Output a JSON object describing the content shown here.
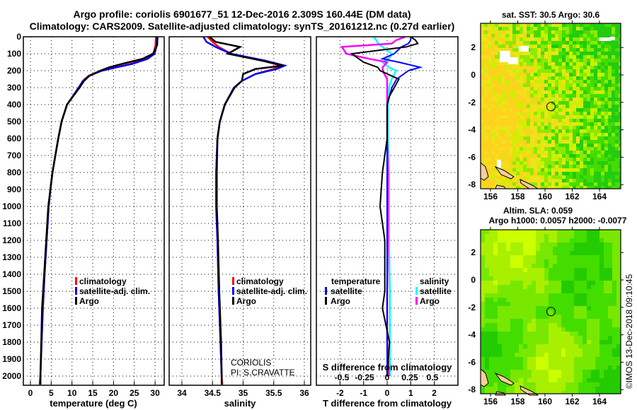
{
  "title_line1": "Argo profile: coriolis 6901677_51 12-Dec-2016 2.309S 160.44E (DM data)",
  "title_line2": "Climatology: CARS2009. Satellite-adjusted climatology: synTS_20161212.nc (0.27d earlier)",
  "credit": "©IMOS 13-Dec-2018 09:10:45",
  "annotation": {
    "line1": "CORIOLIS",
    "line2": "PI: S.CRAVATTE"
  },
  "colors": {
    "climatology": "#ff0000",
    "satellite": "#0000ff",
    "argo": "#000000",
    "sal_satellite": "#00ffff",
    "sal_argo": "#ff00ff"
  },
  "chart_data": [
    {
      "type": "line",
      "title": "",
      "xlabel": "temperature (deg C)",
      "ylabel": "",
      "xlim": [
        -2,
        32
      ],
      "ylim": [
        2054,
        0
      ],
      "xticks": [
        "0",
        "5",
        "10",
        "15",
        "20",
        "25",
        "30"
      ],
      "yticks": [
        "0",
        "100",
        "200",
        "300",
        "400",
        "500",
        "600",
        "700",
        "800",
        "900",
        "1000",
        "1100",
        "1200",
        "1300",
        "1400",
        "1500",
        "1600",
        "1700",
        "1800",
        "1900",
        "2000"
      ],
      "legend": [
        "climatology",
        "satellite-adj. clim.",
        "Argo"
      ],
      "legend_placement": "center-right",
      "depth": [
        0,
        50,
        100,
        130,
        160,
        180,
        200,
        230,
        260,
        300,
        400,
        500,
        600,
        700,
        800,
        900,
        1000,
        1200,
        1400,
        1600,
        1800,
        2000,
        2050
      ],
      "series": [
        {
          "name": "climatology",
          "values": [
            30.2,
            30.1,
            29.6,
            28,
            24,
            20.5,
            17,
            14,
            12.6,
            11.6,
            8.8,
            7.5,
            6.7,
            6,
            5.3,
            4.8,
            4.4,
            3.9,
            3.4,
            3,
            2.7,
            2.4,
            2.2
          ]
        },
        {
          "name": "satellite-adj. clim.",
          "values": [
            30.5,
            30.4,
            29.9,
            28.2,
            24.5,
            20.8,
            17.2,
            14.1,
            12.7,
            11.6,
            8.8,
            7.5,
            6.7,
            6,
            5.3,
            4.8,
            4.4,
            3.9,
            3.4,
            3,
            2.7,
            2.4,
            2.4
          ]
        },
        {
          "name": "Argo",
          "values": [
            30.6,
            30.5,
            29.5,
            27,
            22,
            19,
            16.8,
            14.2,
            12.9,
            11.8,
            8.8,
            7.5,
            6.7,
            6,
            5.3,
            4.8,
            4.3,
            3.8,
            3.3,
            2.8,
            2.6,
            2.4,
            2.4
          ]
        }
      ]
    },
    {
      "type": "line",
      "xlabel": "salinity",
      "xlim": [
        33.8,
        36.1
      ],
      "ylim": [
        2054,
        0
      ],
      "xticks": [
        "34",
        "34.5",
        "35",
        "35.5",
        "36"
      ],
      "legend": [
        "climatology",
        "satellite-adj. clim.",
        "Argo"
      ],
      "legend_placement": "center-right",
      "depth": [
        0,
        30,
        60,
        100,
        140,
        170,
        190,
        220,
        260,
        300,
        400,
        500,
        600,
        800,
        1000,
        1200,
        1500,
        1800,
        2000,
        2050
      ],
      "series": [
        {
          "name": "climatology",
          "values": [
            34.42,
            34.5,
            34.6,
            34.8,
            35.3,
            35.62,
            35.5,
            35.2,
            34.98,
            34.85,
            34.7,
            34.62,
            34.58,
            34.56,
            34.56,
            34.58,
            34.6,
            34.63,
            34.65,
            34.66
          ]
        },
        {
          "name": "satellite-adj. clim.",
          "values": [
            34.35,
            34.4,
            34.55,
            34.8,
            35.35,
            35.68,
            35.55,
            35.2,
            34.98,
            34.85,
            34.7,
            34.62,
            34.58,
            34.56,
            34.56,
            34.58,
            34.6,
            34.63,
            34.65,
            34.65
          ]
        },
        {
          "name": "Argo",
          "values": [
            34.45,
            34.55,
            34.95,
            34.75,
            35.3,
            35.66,
            35.2,
            35.0,
            34.98,
            34.86,
            34.7,
            34.62,
            34.58,
            34.57,
            34.57,
            34.59,
            34.61,
            34.64,
            34.65,
            34.65
          ]
        }
      ]
    },
    {
      "type": "line",
      "xlabel": "T difference from climatology",
      "xlabel_secondary": "S difference from climatology",
      "xlim": [
        -3,
        3
      ],
      "xlim_secondary": [
        -0.75,
        0.75
      ],
      "ylim": [
        2054,
        0
      ],
      "xticks": [
        "-2",
        "-1",
        "0",
        "1",
        "2"
      ],
      "xticks_secondary": [
        "-0.5",
        "-0.25",
        "0",
        "0.25",
        "0.5"
      ],
      "legend_temperature": {
        "heading": "temperature",
        "items": [
          "satellite",
          "Argo"
        ]
      },
      "legend_salinity": {
        "heading": "salinity",
        "items": [
          "satellite",
          "Argo"
        ]
      },
      "depth": [
        0,
        20,
        40,
        60,
        100,
        130,
        150,
        180,
        200,
        250,
        300,
        350,
        400,
        600,
        800,
        1000,
        1100,
        1200,
        1500,
        1600,
        1800,
        2000
      ],
      "series": [
        {
          "name": "temperature satellite",
          "values": [
            1.0,
            1.0,
            0.9,
            0.6,
            0.3,
            -0.2,
            0.5,
            1.4,
            0.9,
            0.4,
            0.2,
            0.1,
            0,
            0,
            0,
            0,
            0,
            0,
            0,
            0,
            0,
            0
          ]
        },
        {
          "name": "temperature Argo",
          "values": [
            1.0,
            1.2,
            1.3,
            0.8,
            -1.5,
            -1.2,
            -1.0,
            -0.4,
            -0.3,
            0.5,
            0.3,
            0.1,
            0,
            0,
            -0.2,
            -0.3,
            -0.2,
            -0.1,
            -0.1,
            -0.2,
            0.1,
            0
          ]
        },
        {
          "name": "salinity satellite",
          "values": [
            -0.15,
            -0.12,
            -0.1,
            -0.05,
            0.05,
            0.02,
            -0.05,
            0.02,
            0.1,
            0.05,
            0.02,
            0.02,
            0.01,
            0.01,
            0.02,
            0.02,
            0.02,
            0.02,
            0.03,
            0.03,
            0.03,
            0.03
          ]
        },
        {
          "name": "salinity Argo",
          "values": [
            0.2,
            0.1,
            0.05,
            -0.5,
            -0.45,
            -0.2,
            0,
            -0.05,
            -0.05,
            0,
            0,
            0,
            0,
            0,
            0.01,
            0.01,
            0.01,
            0.01,
            0,
            0,
            0,
            0.02
          ]
        }
      ]
    },
    {
      "type": "heatmap",
      "title": "sat. SST: 30.5 Argo: 30.6",
      "xticks": [
        "156",
        "158",
        "160",
        "162",
        "164"
      ],
      "yticks": [
        "2",
        "0",
        "-2",
        "-4",
        "-6",
        "-8"
      ],
      "xlim": [
        155.3,
        165.6
      ],
      "ylim": [
        -8.3,
        3.7
      ],
      "marker": {
        "lon": 160.44,
        "lat": -2.309
      }
    },
    {
      "type": "heatmap",
      "title": "Altim. SLA: 0.059",
      "subtitle": "Argo h1000: 0.0057 h2000: -0.0077",
      "xticks": [
        "156",
        "158",
        "160",
        "162",
        "164"
      ],
      "yticks": [
        "2",
        "0",
        "-2",
        "-4",
        "-6",
        "-8"
      ],
      "xlim": [
        155.3,
        165.6
      ],
      "ylim": [
        -8.3,
        3.7
      ],
      "marker": {
        "lon": 160.44,
        "lat": -2.309
      }
    }
  ]
}
